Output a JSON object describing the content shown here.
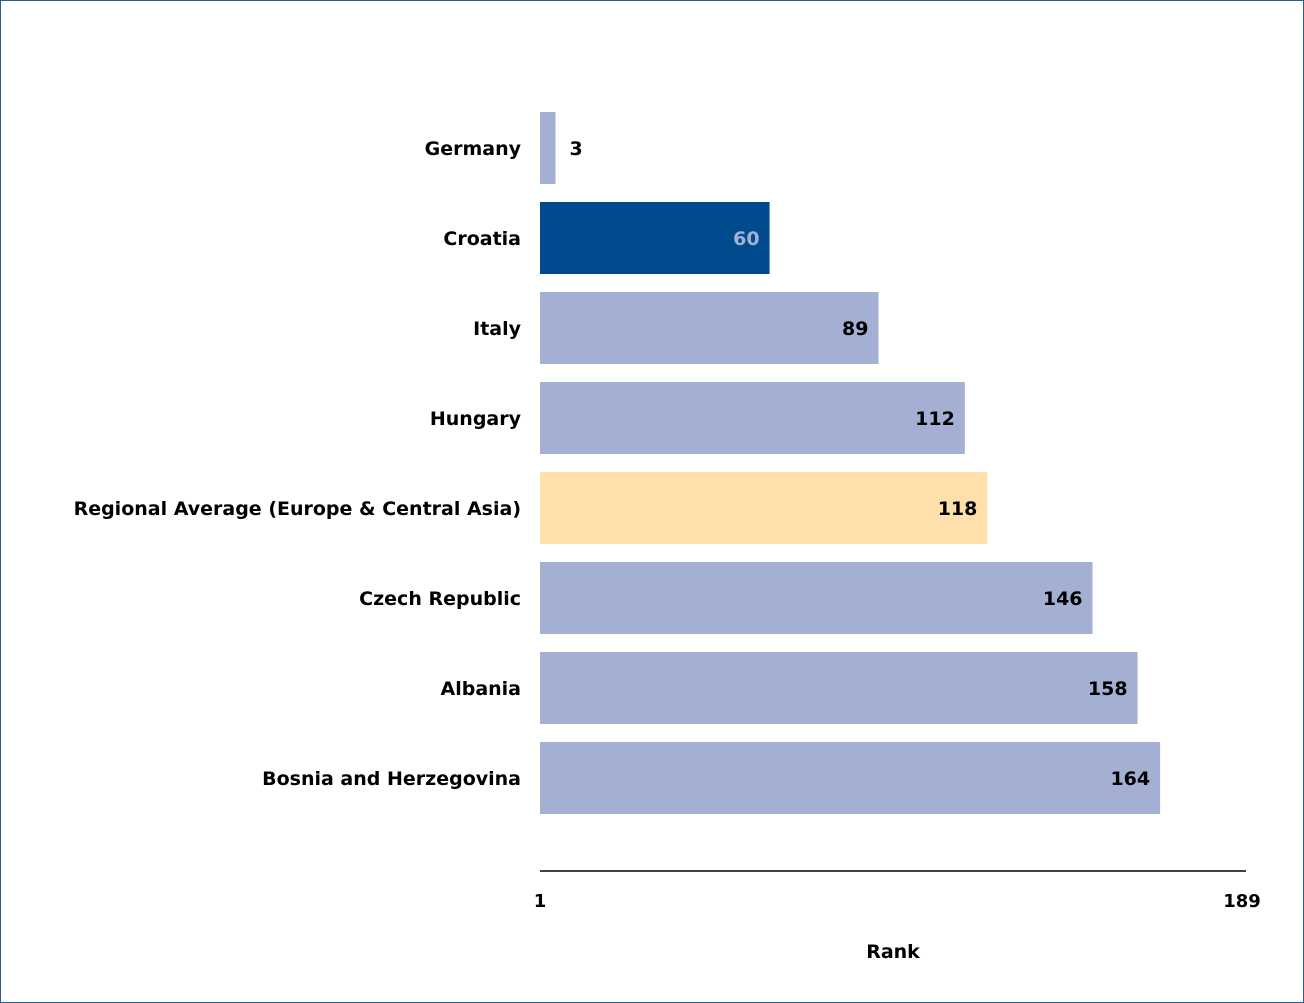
{
  "chart_data": {
    "type": "bar",
    "orientation": "horizontal",
    "categories": [
      "Germany",
      "Croatia",
      "Italy",
      "Hungary",
      "Regional Average (Europe & Central Asia)",
      "Czech Republic",
      "Albania",
      "Bosnia and Herzegovina"
    ],
    "values": [
      3,
      60,
      89,
      112,
      118,
      146,
      158,
      164
    ],
    "xlabel": "Rank",
    "xlim": [
      1,
      189
    ],
    "tick_labels": [
      "1",
      "189"
    ],
    "grid": false,
    "legend": "none",
    "colors": {
      "default": "#a3b0d3",
      "highlight": "#004b8d",
      "regional": "#ffdfaa",
      "highlight_label": "#a3b0d3",
      "label": "#000000",
      "frame": "#2e5c8a"
    },
    "highlight_index": 1,
    "regional_index": 4
  }
}
